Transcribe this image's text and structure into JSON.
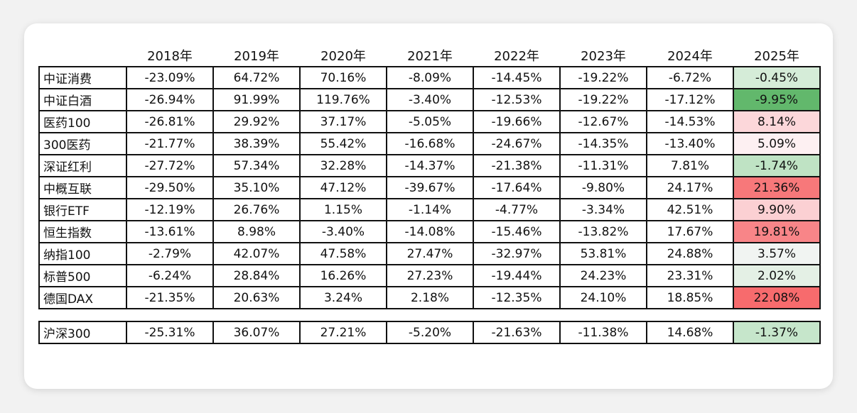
{
  "columns": [
    "",
    "2018年",
    "2019年",
    "2020年",
    "2021年",
    "2022年",
    "2023年",
    "2024年",
    "2025年"
  ],
  "rows": [
    {
      "name": "中证消费",
      "values": [
        "-23.09%",
        "64.72%",
        "70.16%",
        "-8.09%",
        "-14.45%",
        "-19.22%",
        "-6.72%",
        "-0.45%"
      ],
      "color_2025": "#d5ecd8"
    },
    {
      "name": "中证白酒",
      "values": [
        "-26.94%",
        "91.99%",
        "119.76%",
        "-3.40%",
        "-12.53%",
        "-19.22%",
        "-17.12%",
        "-9.95%"
      ],
      "color_2025": "#62b86c"
    },
    {
      "name": "医药100",
      "values": [
        "-26.81%",
        "29.92%",
        "37.17%",
        "-5.05%",
        "-19.66%",
        "-12.67%",
        "-14.53%",
        "8.14%"
      ],
      "color_2025": "#fcd7da"
    },
    {
      "name": "300医药",
      "values": [
        "-21.77%",
        "38.39%",
        "55.42%",
        "-16.68%",
        "-24.67%",
        "-14.35%",
        "-13.40%",
        "5.09%"
      ],
      "color_2025": "#fdf0f2"
    },
    {
      "name": "深证红利",
      "values": [
        "-27.72%",
        "57.34%",
        "32.28%",
        "-14.37%",
        "-21.38%",
        "-11.31%",
        "7.81%",
        "-1.74%"
      ],
      "color_2025": "#bfe3c4"
    },
    {
      "name": "中概互联",
      "values": [
        "-29.50%",
        "35.10%",
        "47.12%",
        "-39.67%",
        "-17.64%",
        "-9.80%",
        "24.17%",
        "21.36%"
      ],
      "color_2025": "#f7787a"
    },
    {
      "name": "银行ETF",
      "values": [
        "-12.19%",
        "26.76%",
        "1.15%",
        "-1.14%",
        "-4.77%",
        "-3.34%",
        "42.51%",
        "9.90%"
      ],
      "color_2025": "#fbd0d3"
    },
    {
      "name": "恒生指数",
      "values": [
        "-13.61%",
        "8.98%",
        "-3.40%",
        "-14.08%",
        "-15.46%",
        "-13.82%",
        "17.67%",
        "19.81%"
      ],
      "color_2025": "#f88588"
    },
    {
      "name": "纳指100",
      "values": [
        "-2.79%",
        "42.07%",
        "47.58%",
        "27.47%",
        "-32.97%",
        "53.81%",
        "24.88%",
        "3.57%"
      ],
      "color_2025": "#f1f4f2"
    },
    {
      "name": "标普500",
      "values": [
        "-6.24%",
        "28.84%",
        "16.26%",
        "27.23%",
        "-19.44%",
        "24.23%",
        "23.31%",
        "2.02%"
      ],
      "color_2025": "#e4f0e5"
    },
    {
      "name": "德国DAX",
      "values": [
        "-21.35%",
        "20.63%",
        "3.24%",
        "2.18%",
        "-12.35%",
        "24.10%",
        "18.85%",
        "22.08%"
      ],
      "color_2025": "#f76b6d"
    }
  ],
  "benchmark": {
    "name": "沪深300",
    "values": [
      "-25.31%",
      "36.07%",
      "27.21%",
      "-5.20%",
      "-21.63%",
      "-11.38%",
      "14.68%",
      "-1.37%"
    ],
    "color_2025": "#c6e6cb"
  }
}
